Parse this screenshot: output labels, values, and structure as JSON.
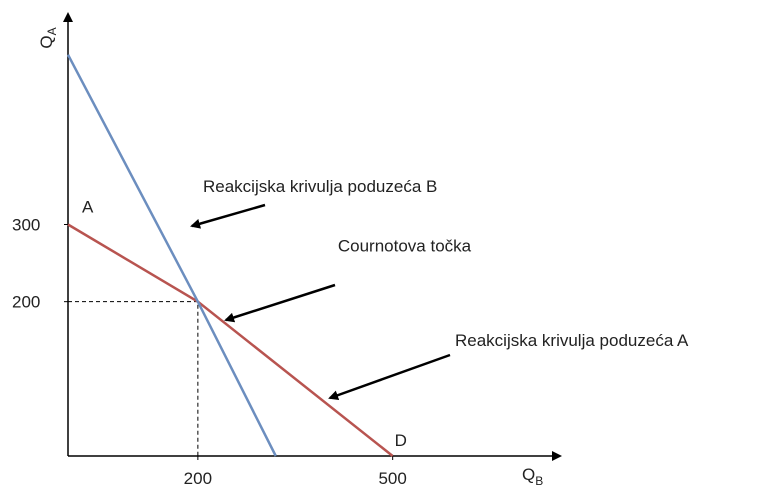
{
  "chart_data": {
    "type": "line",
    "x_label": "Q",
    "x_label_sub": "B",
    "y_label": "Q",
    "y_label_sub": "A",
    "xlim": [
      0,
      750
    ],
    "ylim": [
      0,
      565
    ],
    "xticks": [
      200,
      500
    ],
    "yticks": [
      200,
      300
    ],
    "series": [
      {
        "name": "Reakcijska krivulja poduzeća A",
        "color": "#b85450",
        "x": [
          0,
          200,
          500
        ],
        "values": [
          300,
          200,
          0
        ]
      },
      {
        "name": "Reakcijska krivulja poduzeća B",
        "color": "#6c8ebf",
        "x": [
          0,
          200,
          320
        ],
        "values": [
          520,
          200,
          0
        ]
      }
    ],
    "annotations": [
      {
        "text": "A",
        "x": 0,
        "y": 300
      },
      {
        "text": "D",
        "x": 500,
        "y": 0
      },
      {
        "text": "Cournotova točka",
        "x": 200,
        "y": 200
      }
    ]
  }
}
